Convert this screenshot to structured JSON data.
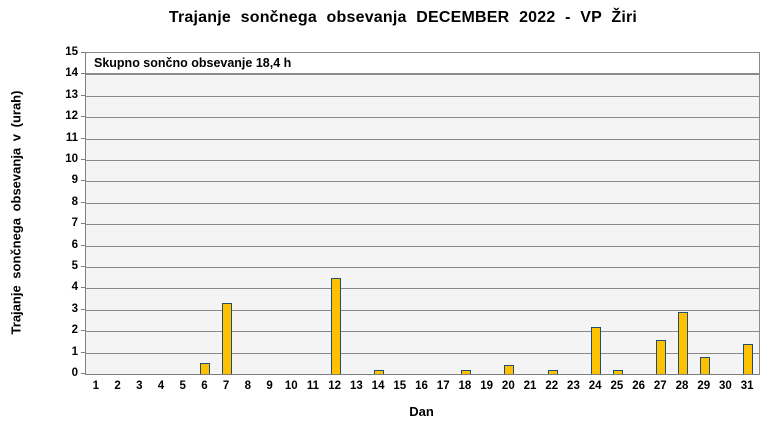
{
  "title": "Trajanje sončnega obsevanja DECEMBER 2022 - VP Žiri",
  "annotation": "Skupno sončno obsevanje 18,4 h",
  "chart_data": {
    "type": "bar",
    "title": "Trajanje sončnega obsevanja DECEMBER 2022 - VP Žiri",
    "subtitle": "",
    "annotation": "Skupno sončno obsevanje 18,4 h",
    "xlabel": "Dan",
    "ylabel": "Trajanje  sončnega obsevanja  v (urah)",
    "categories": [
      1,
      2,
      3,
      4,
      5,
      6,
      7,
      8,
      9,
      10,
      11,
      12,
      13,
      14,
      15,
      16,
      17,
      18,
      19,
      20,
      21,
      22,
      23,
      24,
      25,
      26,
      27,
      28,
      29,
      30,
      31
    ],
    "values": [
      0,
      0,
      0,
      0,
      0,
      0.5,
      3.3,
      0,
      0,
      0,
      0,
      4.5,
      0,
      0.2,
      0,
      0,
      0,
      0.2,
      0,
      0.4,
      0,
      0.2,
      0,
      2.2,
      0.2,
      0,
      1.6,
      2.9,
      0.8,
      0,
      1.4
    ],
    "total_hours": "18,4",
    "ylim": [
      0,
      15
    ],
    "ytick_step": 1,
    "grid": true,
    "legend": "none",
    "colors": {
      "bar_fill": "#FFC000",
      "bar_border": "#1F4E79",
      "plot_bg": "#F4F4F4",
      "gridline": "#8a8a8a",
      "axis": "#7f7f7f",
      "annotation_bg": "#FFFFFF",
      "text": "#000000"
    }
  }
}
